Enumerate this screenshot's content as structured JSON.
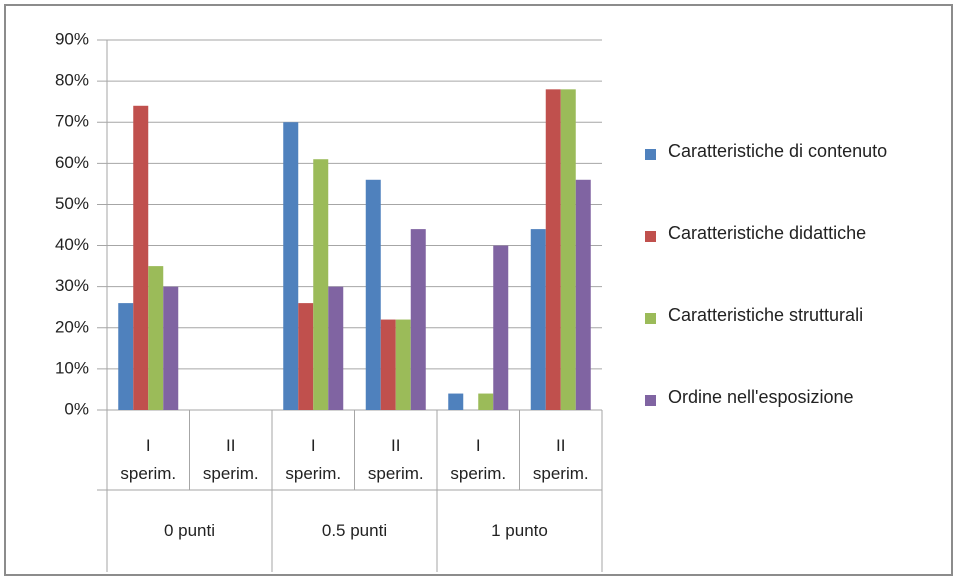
{
  "chart_data": {
    "type": "bar",
    "categories": [
      "I sperim.",
      "II sperim.",
      "I sperim.",
      "II sperim.",
      "I sperim.",
      "II sperim."
    ],
    "group_labels": [
      "0 punti",
      "0.5 punti",
      "1 punto"
    ],
    "series": [
      {
        "name": "Caratteristiche di contenuto",
        "color": "#4f81bd",
        "values": [
          26,
          0,
          70,
          56,
          4,
          44
        ]
      },
      {
        "name": "Caratteristiche didattiche",
        "color": "#c0504d",
        "values": [
          74,
          0,
          26,
          22,
          0,
          78
        ]
      },
      {
        "name": "Caratteristiche strutturali",
        "color": "#9bbb59",
        "values": [
          35,
          0,
          61,
          22,
          4,
          78
        ]
      },
      {
        "name": "Ordine nell'esposizione",
        "color": "#8064a2",
        "values": [
          30,
          0,
          30,
          44,
          40,
          56
        ]
      }
    ],
    "ylim": [
      0,
      90
    ],
    "yticks": [
      {
        "value": 0,
        "label": "0%"
      },
      {
        "value": 10,
        "label": "10%"
      },
      {
        "value": 20,
        "label": "20%"
      },
      {
        "value": 30,
        "label": "30%"
      },
      {
        "value": 40,
        "label": "40%"
      },
      {
        "value": 50,
        "label": "50%"
      },
      {
        "value": 60,
        "label": "60%"
      },
      {
        "value": 70,
        "label": "70%"
      },
      {
        "value": 80,
        "label": "80%"
      },
      {
        "value": 90,
        "label": "90%"
      }
    ],
    "grid": true,
    "legend": "right"
  }
}
